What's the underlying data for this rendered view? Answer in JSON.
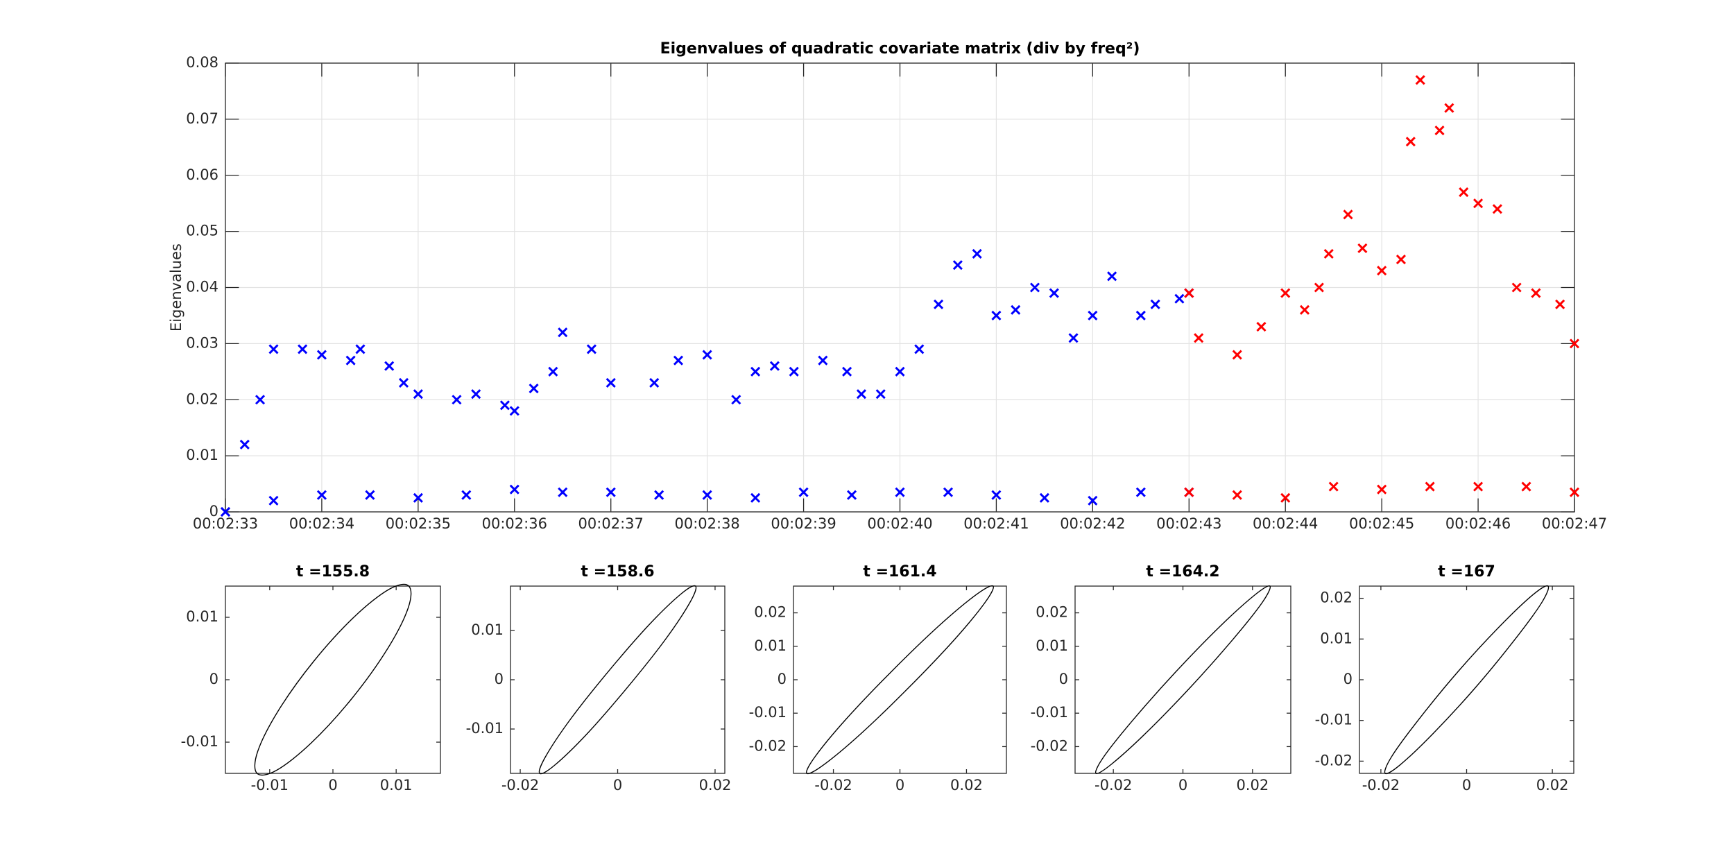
{
  "chart_data": [
    {
      "type": "scatter",
      "title": "Eigenvalues of quadratic covariate matrix (div by freq²)",
      "ylabel": "Eigenvalues",
      "marker": "x",
      "grid": true,
      "xlim": [
        153,
        167
      ],
      "xticks": [
        {
          "value": 153,
          "label": "00:02:33"
        },
        {
          "value": 154,
          "label": "00:02:34"
        },
        {
          "value": 155,
          "label": "00:02:35"
        },
        {
          "value": 156,
          "label": "00:02:36"
        },
        {
          "value": 157,
          "label": "00:02:37"
        },
        {
          "value": 158,
          "label": "00:02:38"
        },
        {
          "value": 159,
          "label": "00:02:39"
        },
        {
          "value": 160,
          "label": "00:02:40"
        },
        {
          "value": 161,
          "label": "00:02:41"
        },
        {
          "value": 162,
          "label": "00:02:42"
        },
        {
          "value": 163,
          "label": "00:02:43"
        },
        {
          "value": 164,
          "label": "00:02:44"
        },
        {
          "value": 165,
          "label": "00:02:45"
        },
        {
          "value": 166,
          "label": "00:02:46"
        },
        {
          "value": 167,
          "label": "00:02:47"
        }
      ],
      "ylim": [
        0,
        0.08
      ],
      "yticks": [
        0,
        0.01,
        0.02,
        0.03,
        0.04,
        0.05,
        0.06,
        0.07,
        0.08
      ],
      "series": [
        {
          "color": "#0000ff",
          "x": [
            153,
            153.2,
            153.36,
            153.5,
            153.8,
            154,
            154.3,
            154.4,
            154.7,
            154.85,
            155,
            155.4,
            155.6,
            155.9,
            156,
            156.2,
            156.4,
            156.5,
            156.8,
            157,
            157.45,
            157.7,
            158,
            158.3,
            158.5,
            158.7,
            158.9,
            159.2,
            159.45,
            159.6,
            159.8,
            160,
            160.2,
            160.4,
            160.6,
            160.8,
            161,
            161.2,
            161.4,
            161.6,
            161.8,
            162,
            162.2,
            162.5,
            162.65,
            162.9,
            163
          ],
          "values": [
            0,
            0.012,
            0.02,
            0.029,
            0.029,
            0.028,
            0.027,
            0.029,
            0.026,
            0.023,
            0.021,
            0.02,
            0.021,
            0.019,
            0.018,
            0.022,
            0.025,
            0.032,
            0.029,
            0.023,
            0.023,
            0.027,
            0.028,
            0.02,
            0.025,
            0.026,
            0.025,
            0.027,
            0.025,
            0.021,
            0.021,
            0.025,
            0.029,
            0.037,
            0.044,
            0.046,
            0.035,
            0.036,
            0.04,
            0.039,
            0.031,
            0.035,
            0.042,
            0.035,
            0.037,
            0.038,
            0.039
          ]
        },
        {
          "color": "#0000ff",
          "x": [
            153,
            153.5,
            154,
            154.5,
            155,
            155.5,
            156,
            156.5,
            157,
            157.5,
            158,
            158.5,
            159,
            159.5,
            160,
            160.5,
            161,
            161.5,
            162,
            162.5,
            163
          ],
          "values": [
            0,
            0.002,
            0.003,
            0.003,
            0.0025,
            0.003,
            0.004,
            0.0035,
            0.0035,
            0.003,
            0.003,
            0.0025,
            0.0035,
            0.003,
            0.0035,
            0.0035,
            0.003,
            0.0025,
            0.002,
            0.0035,
            0.0035
          ]
        },
        {
          "color": "#ff0000",
          "x": [
            163,
            163.1,
            163.5,
            163.75,
            164,
            164.2,
            164.35,
            164.45,
            164.65,
            164.8,
            165,
            165.2,
            165.3,
            165.4,
            165.6,
            165.7,
            165.85,
            166,
            166.2,
            166.4,
            166.6,
            166.85,
            167
          ],
          "values": [
            0.039,
            0.031,
            0.028,
            0.033,
            0.039,
            0.036,
            0.04,
            0.046,
            0.053,
            0.047,
            0.043,
            0.045,
            0.066,
            0.077,
            0.068,
            0.072,
            0.057,
            0.055,
            0.054,
            0.04,
            0.039,
            0.037,
            0.03
          ]
        },
        {
          "color": "#ff0000",
          "x": [
            163,
            163.5,
            164,
            164.5,
            165,
            165.5,
            166,
            166.5,
            167
          ],
          "values": [
            0.0035,
            0.003,
            0.0025,
            0.0045,
            0.004,
            0.0045,
            0.0045,
            0.0045,
            0.0035
          ]
        }
      ]
    },
    {
      "type": "line",
      "title": "t =155.8",
      "closed": true,
      "xlim": [
        -0.017,
        0.017
      ],
      "ylim": [
        -0.015,
        0.015
      ],
      "xticks": [
        -0.01,
        0,
        0.01
      ],
      "yticks": [
        -0.01,
        0,
        0.01
      ],
      "series": [
        {
          "color": "#000000",
          "x": [
            0.012,
            0.0089,
            0.0034,
            -0.003,
            -0.0086,
            -0.0119,
            -0.012,
            -0.0089,
            -0.0034,
            0.003,
            0.0086,
            0.0119
          ],
          "values": [
            0.015,
            0.0145,
            0.0101,
            0.003,
            -0.0049,
            -0.0115,
            -0.015,
            -0.0145,
            -0.0101,
            -0.003,
            0.0049,
            0.0115
          ]
        }
      ]
    },
    {
      "type": "line",
      "title": "t =158.6",
      "closed": true,
      "xlim": [
        -0.022,
        0.022
      ],
      "ylim": [
        -0.019,
        0.019
      ],
      "xticks": [
        -0.02,
        0,
        0.02
      ],
      "yticks": [
        -0.01,
        0,
        0.01
      ],
      "series": [
        {
          "color": "#000000",
          "x": [
            0.016,
            0.013,
            0.0064,
            -0.0018,
            -0.0096,
            -0.0148,
            -0.016,
            -0.013,
            -0.0064,
            0.0018,
            0.0096,
            0.0148
          ],
          "values": [
            0.019,
            0.0174,
            0.0111,
            0.0018,
            -0.0079,
            -0.0156,
            -0.019,
            -0.0174,
            -0.0111,
            -0.0018,
            0.0079,
            0.0156
          ]
        }
      ]
    },
    {
      "type": "line",
      "title": "t =161.4",
      "closed": true,
      "xlim": [
        -0.032,
        0.032
      ],
      "ylim": [
        -0.028,
        0.028
      ],
      "xticks": [
        -0.02,
        0,
        0.02
      ],
      "yticks": [
        -0.02,
        -0.01,
        0,
        0.01,
        0.02
      ],
      "series": [
        {
          "color": "#000000",
          "x": [
            0.028,
            0.023,
            0.0118,
            -0.0025,
            -0.0162,
            -0.0255,
            -0.028,
            -0.023,
            -0.0118,
            0.0025,
            0.0162,
            0.0255
          ],
          "values": [
            0.028,
            0.0255,
            0.0162,
            0.0025,
            -0.0118,
            -0.023,
            -0.028,
            -0.0255,
            -0.0162,
            -0.0025,
            0.0118,
            0.023
          ]
        }
      ]
    },
    {
      "type": "line",
      "title": "t =164.2",
      "closed": true,
      "xlim": [
        -0.031,
        0.031
      ],
      "ylim": [
        -0.028,
        0.028
      ],
      "xticks": [
        -0.02,
        0,
        0.02
      ],
      "yticks": [
        -0.02,
        -0.01,
        0,
        0.01,
        0.02
      ],
      "series": [
        {
          "color": "#000000",
          "x": [
            0.025,
            0.0206,
            0.0106,
            -0.0022,
            -0.0144,
            -0.0228,
            -0.025,
            -0.0206,
            -0.0106,
            0.0022,
            0.0144,
            0.0228
          ],
          "values": [
            0.028,
            0.0253,
            0.0159,
            0.0022,
            -0.0121,
            -0.0231,
            -0.028,
            -0.0253,
            -0.0159,
            -0.0022,
            0.0121,
            0.0231
          ]
        }
      ]
    },
    {
      "type": "line",
      "title": "t =167",
      "closed": true,
      "xlim": [
        -0.025,
        0.025
      ],
      "ylim": [
        -0.023,
        0.023
      ],
      "xticks": [
        -0.02,
        0,
        0.02
      ],
      "yticks": [
        -0.02,
        -0.01,
        0,
        0.01,
        0.02
      ],
      "series": [
        {
          "color": "#000000",
          "x": [
            0.019,
            0.0155,
            0.0078,
            -0.002,
            -0.0112,
            -0.0175,
            -0.019,
            -0.0155,
            -0.0078,
            0.002,
            0.0112,
            0.0175
          ],
          "values": [
            0.023,
            0.0209,
            0.0132,
            0.002,
            -0.0098,
            -0.0189,
            -0.023,
            -0.0209,
            -0.0132,
            -0.002,
            0.0098,
            0.0189
          ]
        }
      ]
    }
  ]
}
